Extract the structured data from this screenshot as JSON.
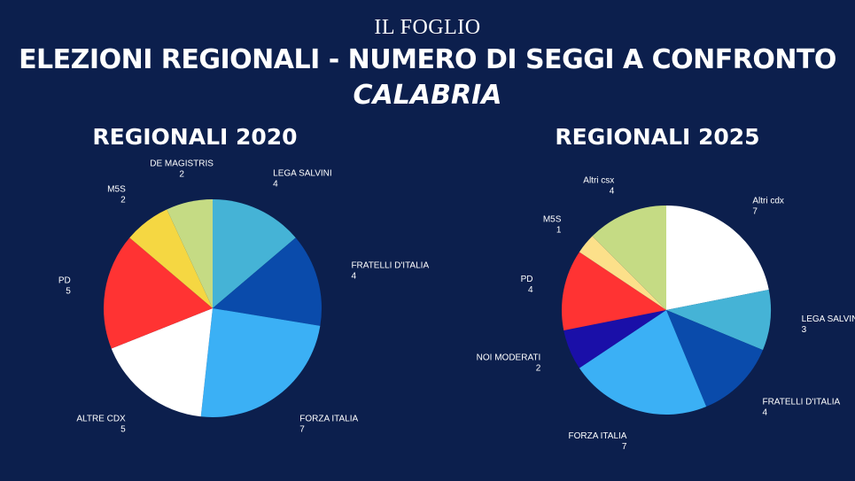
{
  "header": {
    "brand": "IL FOGLIO",
    "title": "ELEZIONI REGIONALI - NUMERO DI SEGGI A CONFRONTO",
    "subtitle": "CALABRIA"
  },
  "chart_data": [
    {
      "type": "pie",
      "title": "REGIONALI 2020",
      "slices": [
        {
          "label": "LEGA SALVINI",
          "value": 4,
          "color": "#45b3d6"
        },
        {
          "label": "FRATELLI D'ITALIA",
          "value": 4,
          "color": "#0a4bab"
        },
        {
          "label": "FORZA ITALIA",
          "value": 7,
          "color": "#3bb0f5"
        },
        {
          "label": "ALTRE CDX",
          "value": 5,
          "color": "#ffffff"
        },
        {
          "label": "PD",
          "value": 5,
          "color": "#ff3333"
        },
        {
          "label": "M5S",
          "value": 2,
          "color": "#f5d742"
        },
        {
          "label": "DE MAGISTRIS",
          "value": 2,
          "color": "#c5db84"
        }
      ]
    },
    {
      "type": "pie",
      "title": "REGIONALI 2025",
      "slices": [
        {
          "label": "Altri cdx",
          "value": 7,
          "color": "#ffffff"
        },
        {
          "label": "LEGA SALVINI",
          "value": 3,
          "color": "#45b3d6"
        },
        {
          "label": "FRATELLI D'ITALIA",
          "value": 4,
          "color": "#0a4bab"
        },
        {
          "label": "FORZA ITALIA",
          "value": 7,
          "color": "#3bb0f5"
        },
        {
          "label": "NOI MODERATI",
          "value": 2,
          "color": "#1a0fa8"
        },
        {
          "label": "PD",
          "value": 4,
          "color": "#ff3333"
        },
        {
          "label": "M5S",
          "value": 1,
          "color": "#fce08a"
        },
        {
          "label": "Altri csx",
          "value": 4,
          "color": "#c5db84"
        }
      ]
    }
  ]
}
